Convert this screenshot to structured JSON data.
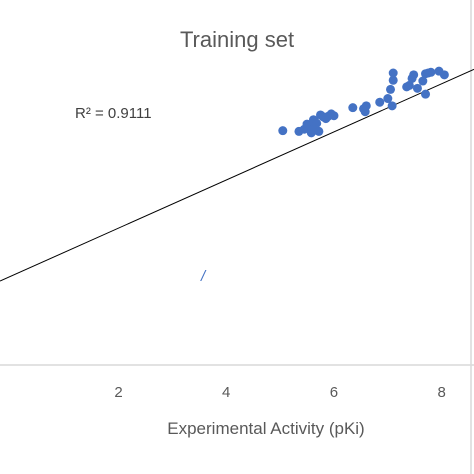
{
  "chart_data": {
    "type": "scatter",
    "title": "Training set",
    "xlabel": "Experimental Activity (pKi)",
    "ylabel": "",
    "annotation": "R² = 0.9111",
    "stray_mark": "/",
    "xlim": [
      -0.2,
      8.6
    ],
    "ylim": [
      0,
      10
    ],
    "xticks": [
      2,
      4,
      6,
      8
    ],
    "trendline": {
      "x": [
        -0.2,
        8.6
      ],
      "y": [
        2.3,
        8.1
      ]
    },
    "colors": {
      "points": "#4472c4",
      "trendline": "#000000",
      "axis": "#d9d9d9",
      "text": "#595959"
    },
    "legend": "none",
    "grid": false,
    "points": [
      [
        5.05,
        6.42
      ],
      [
        5.35,
        6.4
      ],
      [
        5.45,
        6.46
      ],
      [
        5.5,
        6.6
      ],
      [
        5.55,
        6.55
      ],
      [
        5.58,
        6.36
      ],
      [
        5.6,
        6.45
      ],
      [
        5.62,
        6.72
      ],
      [
        5.65,
        6.66
      ],
      [
        5.68,
        6.62
      ],
      [
        5.72,
        6.4
      ],
      [
        5.75,
        6.85
      ],
      [
        5.8,
        6.8
      ],
      [
        5.85,
        6.75
      ],
      [
        5.9,
        6.82
      ],
      [
        5.95,
        6.88
      ],
      [
        6.0,
        6.83
      ],
      [
        6.35,
        7.05
      ],
      [
        6.55,
        7.02
      ],
      [
        6.58,
        6.94
      ],
      [
        6.6,
        7.1
      ],
      [
        6.85,
        7.2
      ],
      [
        7.0,
        7.3
      ],
      [
        7.05,
        7.55
      ],
      [
        7.08,
        7.1
      ],
      [
        7.1,
        7.8
      ],
      [
        7.1,
        8.0
      ],
      [
        7.35,
        7.62
      ],
      [
        7.4,
        7.66
      ],
      [
        7.45,
        7.85
      ],
      [
        7.48,
        7.95
      ],
      [
        7.55,
        7.58
      ],
      [
        7.65,
        7.78
      ],
      [
        7.7,
        7.98
      ],
      [
        7.75,
        8.0
      ],
      [
        7.8,
        8.02
      ],
      [
        7.95,
        8.05
      ],
      [
        8.05,
        7.95
      ],
      [
        7.7,
        7.42
      ]
    ]
  }
}
